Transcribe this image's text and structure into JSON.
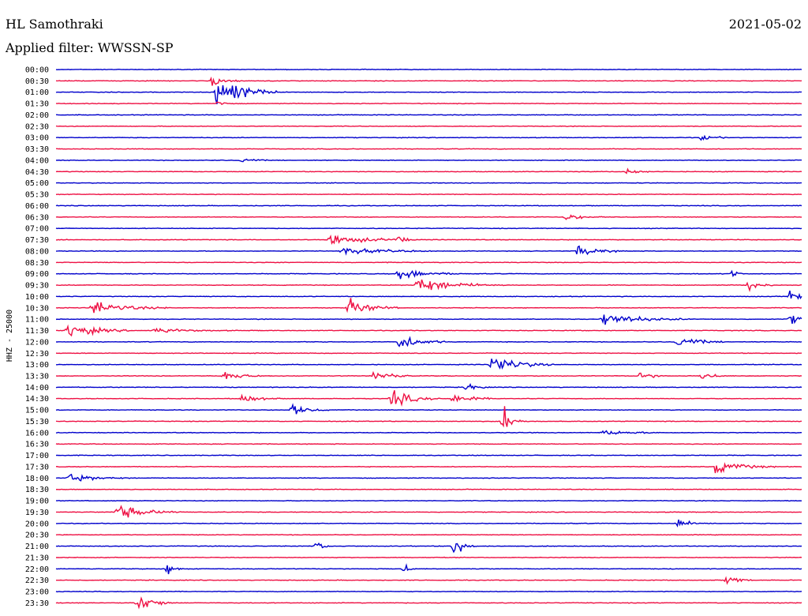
{
  "header": {
    "station": "HL Samothraki",
    "date": "2021-05-02",
    "filter": "Applied filter: WWSSN-SP"
  },
  "chart_data": {
    "type": "line",
    "subtype": "helicorder",
    "ylabel": "HHZ - 25000",
    "row_labels": [
      "00:00",
      "00:30",
      "01:00",
      "01:30",
      "02:00",
      "02:30",
      "03:00",
      "03:30",
      "04:00",
      "04:30",
      "05:00",
      "05:30",
      "06:00",
      "06:30",
      "07:00",
      "07:30",
      "08:00",
      "08:30",
      "09:00",
      "09:30",
      "10:00",
      "10:30",
      "11:00",
      "11:30",
      "12:00",
      "12:30",
      "13:00",
      "13:30",
      "14:00",
      "14:30",
      "15:00",
      "15:30",
      "16:00",
      "16:30",
      "17:00",
      "17:30",
      "18:00",
      "18:30",
      "19:00",
      "19:30",
      "20:00",
      "20:30",
      "21:00",
      "21:30",
      "22:00",
      "22:30",
      "23:00",
      "23:30"
    ],
    "minutes_per_row": 30,
    "colors": [
      "#0000cc",
      "#ee1144"
    ],
    "events": [
      {
        "row": 2,
        "minute": 6.5,
        "amplitude": 1.0,
        "duration": 2.5
      },
      {
        "row": 1,
        "minute": 6.3,
        "amplitude": 0.35,
        "duration": 1.2
      },
      {
        "row": 3,
        "minute": 6.5,
        "amplitude": 0.25,
        "duration": 0.6
      },
      {
        "row": 6,
        "minute": 26.0,
        "amplitude": 0.2,
        "duration": 1.0
      },
      {
        "row": 8,
        "minute": 7.5,
        "amplitude": 0.15,
        "duration": 1.0
      },
      {
        "row": 9,
        "minute": 23.0,
        "amplitude": 0.18,
        "duration": 1.0
      },
      {
        "row": 13,
        "minute": 20.5,
        "amplitude": 0.2,
        "duration": 1.5
      },
      {
        "row": 15,
        "minute": 11.0,
        "amplitude": 0.3,
        "duration": 3.5
      },
      {
        "row": 15,
        "minute": 13.8,
        "amplitude": 0.35,
        "duration": 0.4
      },
      {
        "row": 16,
        "minute": 21.0,
        "amplitude": 0.3,
        "duration": 2.0
      },
      {
        "row": 16,
        "minute": 11.5,
        "amplitude": 0.2,
        "duration": 4.0
      },
      {
        "row": 18,
        "minute": 13.8,
        "amplitude": 0.35,
        "duration": 2.5
      },
      {
        "row": 18,
        "minute": 27.2,
        "amplitude": 0.4,
        "duration": 0.4
      },
      {
        "row": 19,
        "minute": 14.5,
        "amplitude": 0.45,
        "duration": 3.5
      },
      {
        "row": 19,
        "minute": 27.8,
        "amplitude": 0.4,
        "duration": 1.0
      },
      {
        "row": 20,
        "minute": 29.5,
        "amplitude": 0.3,
        "duration": 1.5
      },
      {
        "row": 21,
        "minute": 1.5,
        "amplitude": 0.4,
        "duration": 3.0
      },
      {
        "row": 21,
        "minute": 11.8,
        "amplitude": 0.5,
        "duration": 2.0
      },
      {
        "row": 22,
        "minute": 22.0,
        "amplitude": 0.35,
        "duration": 3.5
      },
      {
        "row": 22,
        "minute": 29.5,
        "amplitude": 0.3,
        "duration": 1.0
      },
      {
        "row": 23,
        "minute": 0.5,
        "amplitude": 0.45,
        "duration": 2.5
      },
      {
        "row": 23,
        "minute": 4.0,
        "amplitude": 0.15,
        "duration": 3.0
      },
      {
        "row": 24,
        "minute": 13.8,
        "amplitude": 0.45,
        "duration": 2.0
      },
      {
        "row": 24,
        "minute": 25.0,
        "amplitude": 0.3,
        "duration": 2.0
      },
      {
        "row": 26,
        "minute": 17.5,
        "amplitude": 0.6,
        "duration": 2.5
      },
      {
        "row": 27,
        "minute": 6.8,
        "amplitude": 0.35,
        "duration": 1.5
      },
      {
        "row": 27,
        "minute": 12.8,
        "amplitude": 0.4,
        "duration": 1.5
      },
      {
        "row": 27,
        "minute": 23.5,
        "amplitude": 0.3,
        "duration": 1.0
      },
      {
        "row": 27,
        "minute": 26.0,
        "amplitude": 0.3,
        "duration": 1.0
      },
      {
        "row": 28,
        "minute": 16.5,
        "amplitude": 0.25,
        "duration": 1.0
      },
      {
        "row": 29,
        "minute": 7.5,
        "amplitude": 0.3,
        "duration": 1.5
      },
      {
        "row": 29,
        "minute": 13.5,
        "amplitude": 0.5,
        "duration": 2.0
      },
      {
        "row": 29,
        "minute": 16.0,
        "amplitude": 0.4,
        "duration": 1.5
      },
      {
        "row": 30,
        "minute": 9.5,
        "amplitude": 0.3,
        "duration": 1.5
      },
      {
        "row": 31,
        "minute": 18.0,
        "amplitude": 0.7,
        "duration": 1.0
      },
      {
        "row": 32,
        "minute": 22.0,
        "amplitude": 0.15,
        "duration": 2.5
      },
      {
        "row": 35,
        "minute": 26.5,
        "amplitude": 0.4,
        "duration": 2.5
      },
      {
        "row": 36,
        "minute": 0.5,
        "amplitude": 0.25,
        "duration": 2.5
      },
      {
        "row": 39,
        "minute": 2.5,
        "amplitude": 0.45,
        "duration": 2.5
      },
      {
        "row": 40,
        "minute": 25.0,
        "amplitude": 0.2,
        "duration": 1.5
      },
      {
        "row": 42,
        "minute": 10.5,
        "amplitude": 0.45,
        "duration": 0.5
      },
      {
        "row": 42,
        "minute": 16.0,
        "amplitude": 0.55,
        "duration": 1.0
      },
      {
        "row": 44,
        "minute": 4.5,
        "amplitude": 0.45,
        "duration": 0.6
      },
      {
        "row": 44,
        "minute": 14.0,
        "amplitude": 0.35,
        "duration": 0.5
      },
      {
        "row": 45,
        "minute": 27.0,
        "amplitude": 0.35,
        "duration": 1.0
      },
      {
        "row": 47,
        "minute": 3.3,
        "amplitude": 0.6,
        "duration": 1.5
      }
    ]
  }
}
